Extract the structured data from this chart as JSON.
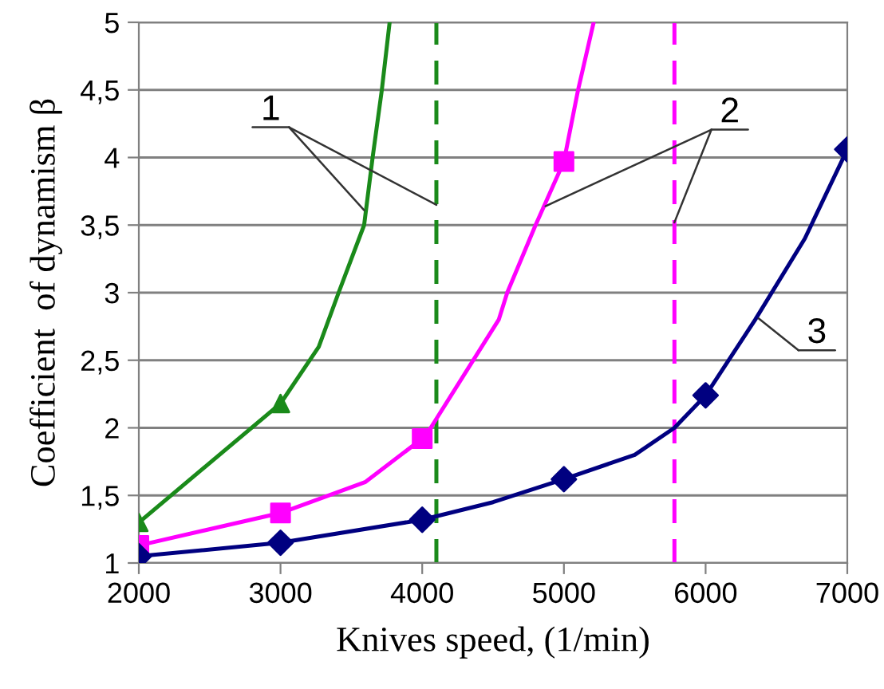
{
  "chart_data": {
    "type": "line",
    "xlabel": "Knives speed, (1/min)",
    "ylabel": "Coefficient  of dynamism β",
    "xlim": [
      2000,
      7000
    ],
    "xticks": [
      2000,
      3000,
      4000,
      5000,
      6000,
      7000
    ],
    "ylim": [
      1,
      5
    ],
    "yticks": [
      1,
      {
        "value": 1.5,
        "label": "1,5"
      },
      2,
      {
        "value": 2.5,
        "label": "2,5"
      },
      3,
      {
        "value": 3.5,
        "label": "3,5"
      },
      4,
      {
        "value": 4.5,
        "label": "4,5"
      },
      5
    ],
    "grid": "y",
    "series": [
      {
        "type": "line",
        "color": "#1a8a1a",
        "marker": "none",
        "x": [
          2000,
          3000,
          3270,
          3410,
          3590,
          3650,
          3715,
          3770
        ],
        "values": [
          1.3,
          2.18,
          2.6,
          3.0,
          3.5,
          4.0,
          4.5,
          5.0
        ]
      },
      {
        "type": "scatter",
        "color": "#1a8a1a",
        "marker": "triangle",
        "x": [
          2000,
          3000
        ],
        "values": [
          1.3,
          2.18
        ]
      },
      {
        "type": "line",
        "color": "#ff00ff",
        "marker": "none",
        "x": [
          2000,
          3000,
          3600,
          4000,
          4060,
          4540,
          4600,
          4800,
          5000,
          5100,
          5210
        ],
        "values": [
          1.13,
          1.37,
          1.6,
          1.92,
          2.0,
          2.8,
          3.0,
          3.5,
          3.97,
          4.5,
          5.0
        ]
      },
      {
        "type": "scatter",
        "color": "#ff00ff",
        "marker": "square",
        "x": [
          2000,
          3000,
          4000,
          5000
        ],
        "values": [
          1.13,
          1.37,
          1.92,
          3.97
        ]
      },
      {
        "type": "line",
        "color": "#000080",
        "marker": "none",
        "x": [
          2000,
          3000,
          4000,
          4500,
          5000,
          5500,
          5780,
          6000,
          6350,
          6700,
          7000
        ],
        "values": [
          1.05,
          1.15,
          1.32,
          1.45,
          1.62,
          1.8,
          2.0,
          2.24,
          2.8,
          3.4,
          4.06
        ]
      },
      {
        "type": "scatter",
        "color": "#000080",
        "marker": "diamond",
        "x": [
          2000,
          3000,
          4000,
          5000,
          6000,
          7000
        ],
        "values": [
          1.05,
          1.15,
          1.32,
          1.62,
          2.24,
          4.06
        ]
      }
    ],
    "ref_lines": [
      {
        "axis": "x",
        "value": 4100,
        "color": "#1a8a1a",
        "line_style": "dashed"
      },
      {
        "axis": "x",
        "value": 5780,
        "color": "#ff00ff",
        "line_style": "dashed"
      }
    ],
    "annotations": [
      {
        "text": "1",
        "x": 3590,
        "y": 3.61
      },
      {
        "text": "2",
        "x": 4870,
        "y": 3.64
      },
      {
        "text": "3",
        "x": 6374,
        "y": 2.81
      }
    ]
  }
}
